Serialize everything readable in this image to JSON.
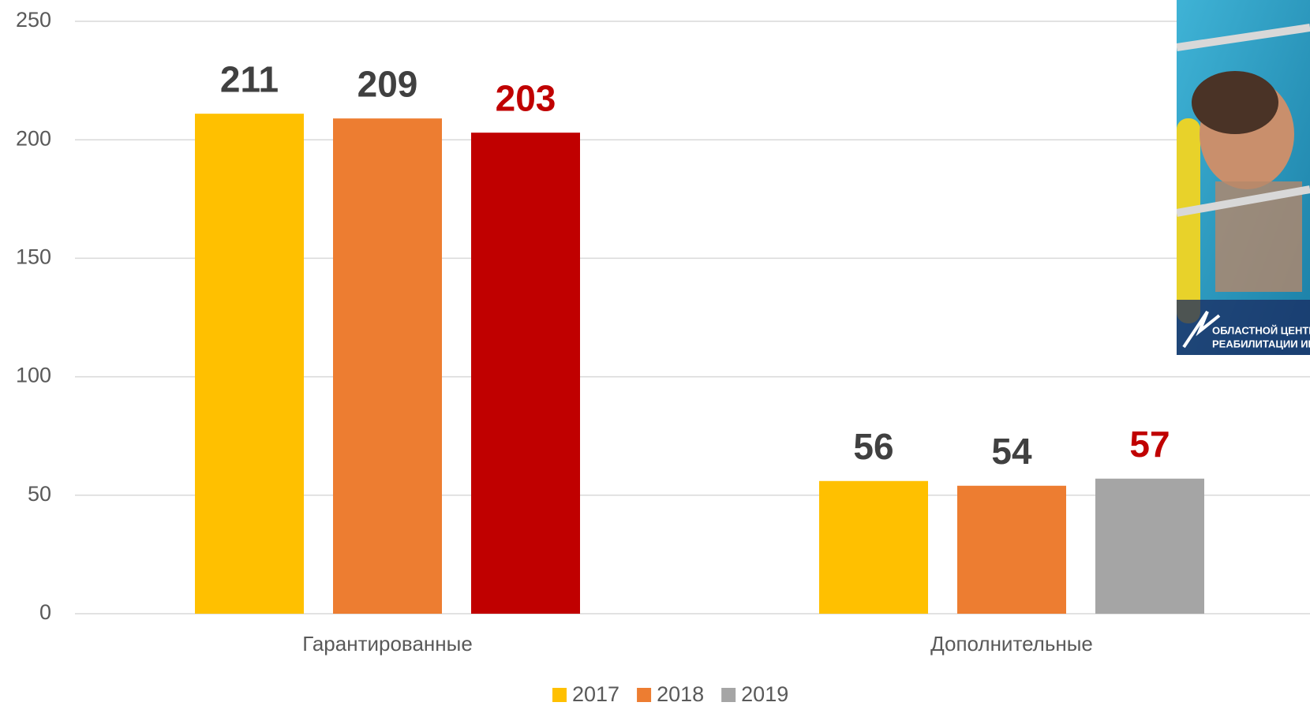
{
  "chart_data": {
    "type": "bar",
    "categories": [
      "Гарантированные",
      "Дополнительные"
    ],
    "series": [
      {
        "name": "2017",
        "color": "#FFC000",
        "values": [
          211,
          56
        ],
        "label_color": "#404040"
      },
      {
        "name": "2018",
        "color": "#ED7D31",
        "values": [
          209,
          54
        ],
        "label_color": "#404040"
      },
      {
        "name": "2019",
        "color": "#A5A5A5",
        "point_colors": [
          "#C00000",
          "#A5A5A5"
        ],
        "values": [
          203,
          57
        ],
        "label_color": "#C00000"
      }
    ],
    "ylim": [
      0,
      250
    ],
    "yticks": [
      0,
      50,
      100,
      150,
      200,
      250
    ],
    "grid": true,
    "legend": "bottom"
  },
  "photo": {
    "caption": [
      "ОБЛАСТНОЙ ЦЕНТР",
      "РЕАБИЛИТАЦИИ ИН"
    ]
  }
}
